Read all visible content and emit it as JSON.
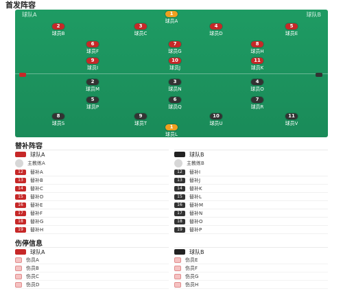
{
  "header": {
    "title": "首发阵容",
    "subtitle": ""
  },
  "pitch": {
    "left_team": "球队A",
    "right_team": "球队B",
    "top_players": [
      {
        "num": "1",
        "name": "球员A",
        "rating": "",
        "gk": true
      },
      {
        "num": "2",
        "name": "球员B",
        "rating": ""
      },
      {
        "num": "3",
        "name": "球员C",
        "rating": ""
      },
      {
        "num": "4",
        "name": "球员D",
        "rating": ""
      },
      {
        "num": "5",
        "name": "球员E",
        "rating": ""
      },
      {
        "num": "6",
        "name": "球员F",
        "rating": ""
      },
      {
        "num": "7",
        "name": "球员G",
        "rating": ""
      },
      {
        "num": "8",
        "name": "球员H",
        "rating": ""
      },
      {
        "num": "9",
        "name": "球员I",
        "rating": ""
      },
      {
        "num": "10",
        "name": "球员J",
        "rating": ""
      },
      {
        "num": "11",
        "name": "球员K",
        "rating": ""
      }
    ],
    "bottom_players": [
      {
        "num": "1",
        "name": "球员L",
        "rating": "",
        "gk": true
      },
      {
        "num": "2",
        "name": "球员M",
        "rating": ""
      },
      {
        "num": "3",
        "name": "球员N",
        "rating": ""
      },
      {
        "num": "4",
        "name": "球员O",
        "rating": ""
      },
      {
        "num": "5",
        "name": "球员P",
        "rating": ""
      },
      {
        "num": "6",
        "name": "球员Q",
        "rating": ""
      },
      {
        "num": "7",
        "name": "球员R",
        "rating": ""
      },
      {
        "num": "8",
        "name": "球员S",
        "rating": ""
      },
      {
        "num": "9",
        "name": "球员T",
        "rating": ""
      },
      {
        "num": "10",
        "name": "球员U",
        "rating": ""
      },
      {
        "num": "11",
        "name": "球员V",
        "rating": ""
      }
    ],
    "formation": {
      "left_a": "",
      "left_b": "",
      "right_a": "",
      "right_b": ""
    }
  },
  "subs": {
    "title": "替补阵容",
    "left": {
      "team": "球队A",
      "coach": "主教练A",
      "rows": [
        {
          "num": "12",
          "name": "替补A",
          "time": ""
        },
        {
          "num": "13",
          "name": "替补B",
          "time": ""
        },
        {
          "num": "14",
          "name": "替补C",
          "time": ""
        },
        {
          "num": "15",
          "name": "替补D",
          "time": ""
        },
        {
          "num": "16",
          "name": "替补E",
          "time": ""
        },
        {
          "num": "17",
          "name": "替补F",
          "time": ""
        },
        {
          "num": "18",
          "name": "替补G",
          "time": ""
        },
        {
          "num": "19",
          "name": "替补H",
          "time": ""
        }
      ]
    },
    "right": {
      "team": "球队B",
      "coach": "主教练B",
      "rows": [
        {
          "num": "12",
          "name": "替补I",
          "time": ""
        },
        {
          "num": "13",
          "name": "替补J",
          "time": ""
        },
        {
          "num": "14",
          "name": "替补K",
          "time": ""
        },
        {
          "num": "15",
          "name": "替补L",
          "time": ""
        },
        {
          "num": "16",
          "name": "替补M",
          "time": ""
        },
        {
          "num": "17",
          "name": "替补N",
          "time": ""
        },
        {
          "num": "18",
          "name": "替补O",
          "time": ""
        },
        {
          "num": "19",
          "name": "替补P",
          "time": ""
        }
      ]
    }
  },
  "injuries": {
    "title": "伤停信息",
    "left": {
      "team": "球队A",
      "rows": [
        {
          "name": "伤员A",
          "status": ""
        },
        {
          "name": "伤员B",
          "status": ""
        },
        {
          "name": "伤员C",
          "status": ""
        },
        {
          "name": "伤员D",
          "status": ""
        }
      ]
    },
    "right": {
      "team": "球队B",
      "rows": [
        {
          "name": "伤员E",
          "status": ""
        },
        {
          "name": "伤员F",
          "status": ""
        },
        {
          "name": "伤员G",
          "status": ""
        },
        {
          "name": "伤员H",
          "status": ""
        }
      ]
    }
  }
}
